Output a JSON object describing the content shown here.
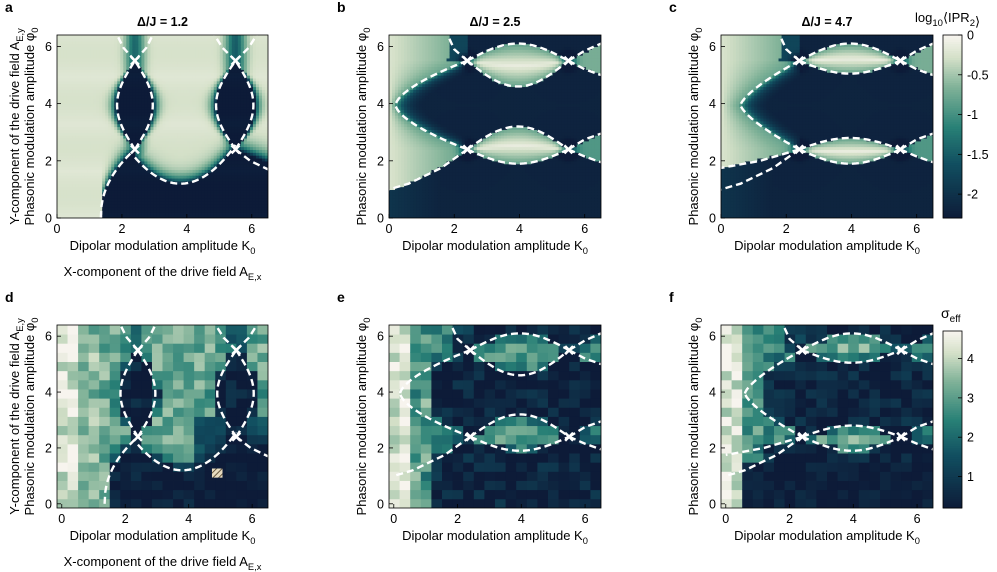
{
  "figure": {
    "panels": [
      {
        "letter": "a",
        "title": "Δ/J = 1.2",
        "ylabel_top": "Y-component of the drive field A",
        "ylabel_top_sub": "E,y",
        "ylabel": "Phasonic modulation amplitude φ",
        "ylabel_sub": "0",
        "xlabel": "Dipolar modulation amplitude K",
        "xlabel_sub": "0",
        "xlabel_bottom": "X-component of the drive field A",
        "xlabel_bottom_sub": "E,x"
      },
      {
        "letter": "b",
        "title": "Δ/J = 2.5",
        "ylabel": "Phasonic modulation amplitude φ",
        "ylabel_sub": "0",
        "xlabel": "Dipolar modulation amplitude K",
        "xlabel_sub": "0"
      },
      {
        "letter": "c",
        "title": "Δ/J = 4.7",
        "ylabel": "Phasonic modulation amplitude φ",
        "ylabel_sub": "0",
        "xlabel": "Dipolar modulation amplitude K",
        "xlabel_sub": "0"
      },
      {
        "letter": "d",
        "ylabel_top": "Y-component of the drive field A",
        "ylabel_top_sub": "E,y",
        "ylabel": "Phasonic modulation amplitude φ",
        "ylabel_sub": "0",
        "xlabel": "Dipolar modulation amplitude K",
        "xlabel_sub": "0",
        "xlabel_bottom": "X-component of the drive field A",
        "xlabel_bottom_sub": "E,x"
      },
      {
        "letter": "e",
        "ylabel": "Phasonic modulation amplitude φ",
        "ylabel_sub": "0",
        "xlabel": "Dipolar modulation amplitude K",
        "xlabel_sub": "0"
      },
      {
        "letter": "f",
        "ylabel": "Phasonic modulation amplitude φ",
        "ylabel_sub": "0",
        "xlabel": "Dipolar modulation amplitude K",
        "xlabel_sub": "0"
      }
    ],
    "colorbar_top": {
      "label": "log",
      "label_sub": "10",
      "label_rest": "⟨IPR",
      "label_rest_sub": "2",
      "label_end": "⟩",
      "ticks": [
        "0",
        "-0.5",
        "-1",
        "-1.5",
        "-2"
      ]
    },
    "colorbar_bottom": {
      "label": "σ",
      "label_sub": "eff",
      "ticks": [
        "4",
        "3",
        "2",
        "1"
      ]
    }
  },
  "chart_data": [
    {
      "panel": "a",
      "type": "heatmap",
      "quantity": "log10 <IPR2>",
      "delta_over_J": 1.2,
      "xlim": [
        0,
        6.5
      ],
      "ylim": [
        0,
        6.4
      ],
      "xticks": [
        "0",
        "2",
        "4",
        "6"
      ],
      "yticks": [
        "0",
        "2",
        "4",
        "6"
      ],
      "clim": [
        -2.3,
        0
      ],
      "crossings": [
        [
          2.4,
          5.5
        ],
        [
          2.4,
          2.4
        ],
        [
          5.5,
          5.5
        ],
        [
          5.5,
          2.4
        ]
      ],
      "low_ipr_region_boundary_min": [
        3.8,
        1.2
      ]
    },
    {
      "panel": "b",
      "type": "heatmap",
      "quantity": "log10 <IPR2>",
      "delta_over_J": 2.5,
      "xlim": [
        0,
        6.5
      ],
      "ylim": [
        0,
        6.4
      ],
      "xticks": [
        "0",
        "2",
        "4",
        "6"
      ],
      "yticks": [
        "0",
        "2",
        "4",
        "6"
      ],
      "clim": [
        -2.3,
        0
      ],
      "crossings": [
        [
          2.4,
          5.5
        ],
        [
          2.4,
          2.4
        ],
        [
          5.5,
          5.5
        ],
        [
          5.5,
          2.4
        ]
      ],
      "lobe_extrema": [
        [
          3.8,
          6.1
        ],
        [
          3.8,
          4.6
        ],
        [
          3.8,
          3.2
        ],
        [
          3.8,
          1.9
        ]
      ]
    },
    {
      "panel": "c",
      "type": "heatmap",
      "quantity": "log10 <IPR2>",
      "delta_over_J": 4.7,
      "xlim": [
        0,
        6.5
      ],
      "ylim": [
        0,
        6.4
      ],
      "xticks": [
        "0",
        "2",
        "4",
        "6"
      ],
      "yticks": [
        "0",
        "2",
        "4",
        "6"
      ],
      "clim": [
        -2.3,
        0
      ],
      "crossings": [
        [
          2.4,
          5.5
        ],
        [
          2.4,
          2.4
        ],
        [
          5.5,
          5.5
        ],
        [
          5.5,
          2.4
        ]
      ],
      "lobe_extrema": [
        [
          3.8,
          6.1
        ],
        [
          3.8,
          5.05
        ],
        [
          3.8,
          2.8
        ],
        [
          3.8,
          1.9
        ]
      ]
    },
    {
      "panel": "d",
      "type": "heatmap",
      "quantity": "sigma_eff",
      "delta_over_J": 1.2,
      "grid": [
        20,
        20
      ],
      "xlim": [
        -0.15,
        6.5
      ],
      "ylim": [
        -0.15,
        6.4
      ],
      "xticks": [
        "0",
        "2",
        "4",
        "6"
      ],
      "yticks": [
        "0",
        "2",
        "4",
        "6"
      ],
      "clim": [
        0.2,
        4.7
      ],
      "crossings": [
        [
          2.4,
          5.5
        ],
        [
          2.4,
          2.4
        ],
        [
          5.5,
          5.5
        ],
        [
          5.5,
          2.4
        ]
      ],
      "hatched_cell": [
        4.9,
        1.1
      ]
    },
    {
      "panel": "e",
      "type": "heatmap",
      "quantity": "sigma_eff",
      "delta_over_J": 2.5,
      "grid": [
        20,
        20
      ],
      "xlim": [
        -0.15,
        6.5
      ],
      "ylim": [
        -0.15,
        6.4
      ],
      "xticks": [
        "0",
        "2",
        "4",
        "6"
      ],
      "yticks": [
        "0",
        "2",
        "4",
        "6"
      ],
      "clim": [
        0.2,
        4.7
      ],
      "crossings": [
        [
          2.4,
          5.5
        ],
        [
          2.4,
          2.4
        ],
        [
          5.5,
          5.5
        ],
        [
          5.5,
          2.4
        ]
      ]
    },
    {
      "panel": "f",
      "type": "heatmap",
      "quantity": "sigma_eff",
      "delta_over_J": 4.7,
      "grid": [
        20,
        20
      ],
      "xlim": [
        -0.15,
        6.5
      ],
      "ylim": [
        -0.15,
        6.4
      ],
      "xticks": [
        "0",
        "2",
        "4",
        "6"
      ],
      "yticks": [
        "0",
        "2",
        "4",
        "6"
      ],
      "clim": [
        0.2,
        4.7
      ],
      "crossings": [
        [
          2.4,
          5.5
        ],
        [
          2.4,
          2.4
        ],
        [
          5.5,
          5.5
        ],
        [
          5.5,
          2.4
        ]
      ]
    }
  ]
}
